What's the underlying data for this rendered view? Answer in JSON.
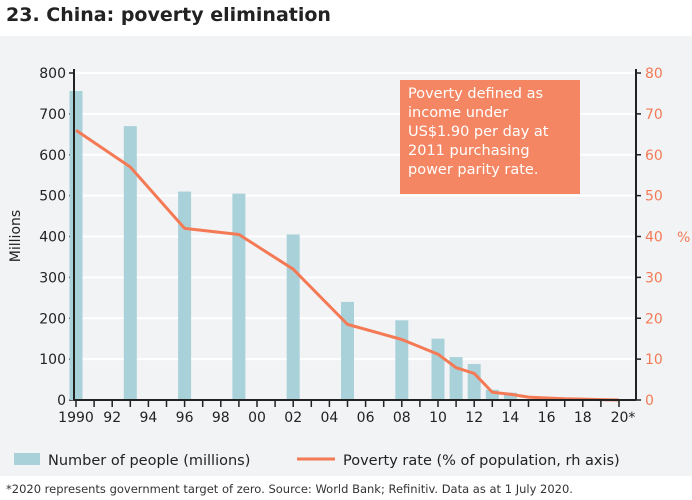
{
  "title": "23. China: poverty elimination",
  "footnote": "*2020 represents government target of zero. Source: World Bank; Refinitiv. Data as at 1 July 2020.",
  "note": "Poverty defined as income under US$1.90 per day at 2011 purchasing power parity rate.",
  "colors": {
    "bars": "#a9d1da",
    "line": "#f47a56",
    "note_bg": "#f48663"
  },
  "chart_data": {
    "type": "bar+line",
    "ylabel": "Millions",
    "y2label": "%",
    "ylim": [
      0,
      800
    ],
    "y2lim": [
      0,
      80
    ],
    "yticks": [
      0,
      100,
      200,
      300,
      400,
      500,
      600,
      700,
      800
    ],
    "y2ticks": [
      0,
      10,
      20,
      30,
      40,
      50,
      60,
      70,
      80
    ],
    "xlim": [
      1990,
      2020
    ],
    "xtick_labels": [
      "1990",
      "92",
      "94",
      "96",
      "98",
      "00",
      "02",
      "04",
      "06",
      "08",
      "10",
      "12",
      "14",
      "16",
      "18",
      "20*"
    ],
    "legend": [
      "Number of people (millions)",
      "Poverty rate (% of population, rh axis)"
    ],
    "legend_placement": "bottom",
    "grid": true,
    "bars": {
      "name": "Number of people (millions)",
      "x": [
        1990,
        1993,
        1996,
        1999,
        2002,
        2005,
        2008,
        2010,
        2011,
        2012,
        2013,
        2014
      ],
      "values": [
        756,
        670,
        510,
        505,
        405,
        240,
        195,
        150,
        105,
        88,
        25,
        18
      ]
    },
    "line": {
      "name": "Poverty rate (% of population, rh axis)",
      "x": [
        1990,
        1993,
        1996,
        1999,
        2002,
        2005,
        2008,
        2010,
        2011,
        2012,
        2013,
        2014,
        2015,
        2016,
        2017,
        2018,
        2019,
        2020
      ],
      "values": [
        66,
        57,
        42,
        40.5,
        32,
        18.5,
        14.8,
        11.2,
        7.9,
        6.5,
        1.9,
        1.4,
        0.7,
        0.5,
        0.3,
        0.2,
        0.1,
        0
      ]
    }
  }
}
